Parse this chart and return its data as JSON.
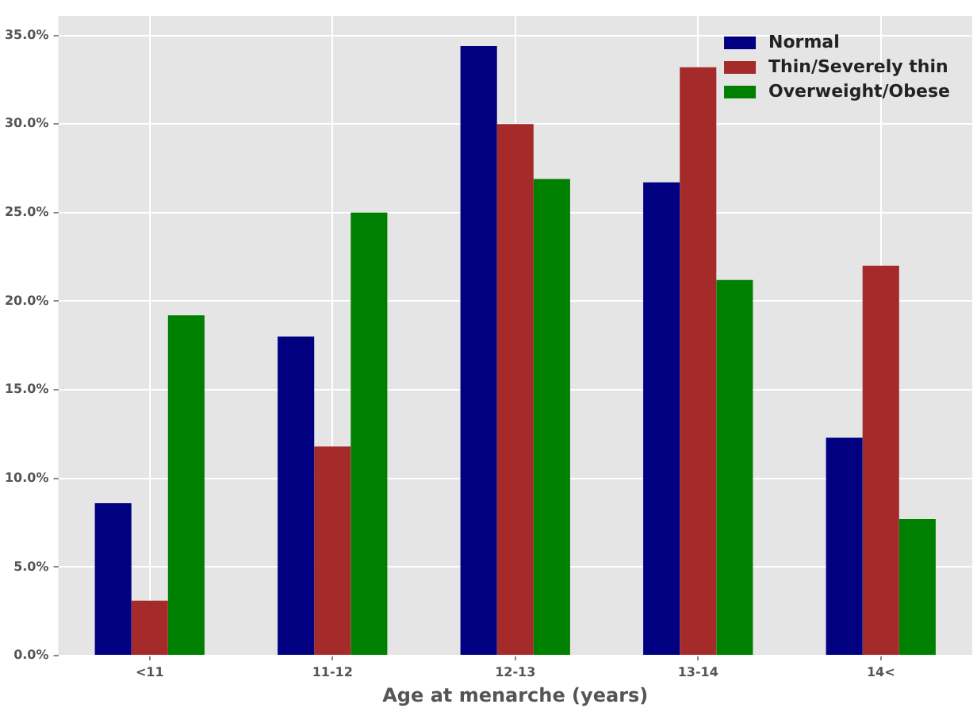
{
  "chart_data": {
    "type": "bar",
    "xlabel": "Age at menarche (years)",
    "categories": [
      "<11",
      "11-12",
      "12-13",
      "13-14",
      "14<"
    ],
    "series": [
      {
        "name": "Normal",
        "color": "#000080",
        "values": [
          8.6,
          18.0,
          34.4,
          26.7,
          12.3
        ]
      },
      {
        "name": "Thin/Severely thin",
        "color": "#a52a2a",
        "values": [
          3.1,
          11.8,
          30.0,
          33.2,
          22.0
        ]
      },
      {
        "name": "Overweight/Obese",
        "color": "#008000",
        "values": [
          19.2,
          25.0,
          26.9,
          21.2,
          7.7
        ]
      }
    ],
    "ylim": [
      0,
      36.1
    ],
    "yticks": [
      {
        "value": 0,
        "label": "0.0%"
      },
      {
        "value": 5,
        "label": "5.0%"
      },
      {
        "value": 10,
        "label": "10.0%"
      },
      {
        "value": 15,
        "label": "15.0%"
      },
      {
        "value": 20,
        "label": "20.0%"
      },
      {
        "value": 25,
        "label": "25.0%"
      },
      {
        "value": 30,
        "label": "30.0%"
      },
      {
        "value": 35,
        "label": "35.0%"
      }
    ],
    "grid": true,
    "legend": "top right"
  }
}
